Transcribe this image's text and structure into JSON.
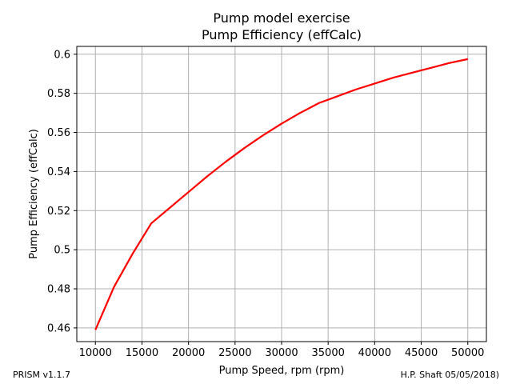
{
  "footer": {
    "left": "PRISM v1.1.7",
    "right": "H.P. Shaft 05/05/2018)"
  },
  "colors": {
    "line": "#ff0000",
    "grid": "#b0b0b0",
    "axis": "#000000",
    "background": "#ffffff"
  },
  "chart_data": {
    "type": "line",
    "title": "Pump model exercise",
    "subtitle": "Pump Efficiency (effCalc)",
    "xlabel": "Pump Speed, rpm (rpm)",
    "ylabel": "Pump Efficiency (effCalc)",
    "xlim": [
      8000,
      52000
    ],
    "ylim": [
      0.453,
      0.604
    ],
    "xticks": [
      10000,
      15000,
      20000,
      25000,
      30000,
      35000,
      40000,
      45000,
      50000
    ],
    "xtick_labels": [
      "10000",
      "15000",
      "20000",
      "25000",
      "30000",
      "35000",
      "40000",
      "45000",
      "50000"
    ],
    "yticks": [
      0.46,
      0.48,
      0.5,
      0.52,
      0.54,
      0.56,
      0.58,
      0.6
    ],
    "ytick_labels": [
      "0.46",
      "0.48",
      "0.5",
      "0.52",
      "0.54",
      "0.56",
      "0.58",
      "0.6"
    ],
    "grid": true,
    "series": [
      {
        "x": [
          10000,
          12000,
          14000,
          16000,
          18000,
          20000,
          22000,
          24000,
          26000,
          28000,
          30000,
          32000,
          34000,
          36000,
          38000,
          40000,
          42000,
          44000,
          46000,
          48000,
          50000
        ],
        "y": [
          0.459,
          0.481,
          0.498,
          0.5135,
          0.5215,
          0.5295,
          0.5375,
          0.545,
          0.552,
          0.5585,
          0.5645,
          0.57,
          0.575,
          0.5785,
          0.582,
          0.585,
          0.588,
          0.5905,
          0.593,
          0.5955,
          0.5975
        ]
      }
    ]
  }
}
